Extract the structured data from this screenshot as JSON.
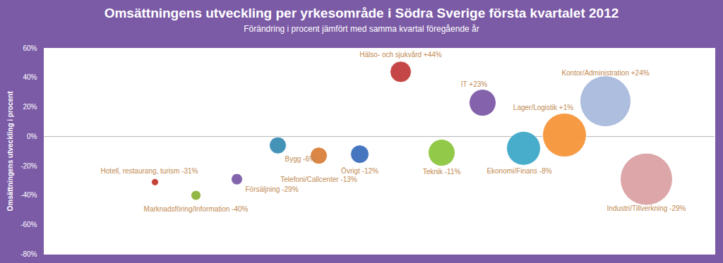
{
  "chart_data": {
    "type": "scatter",
    "title": "Omsättningens utveckling per yrkesområde i Södra Sverige första kvartalet 2012",
    "subtitle": "Förändring i procent jämfört med samma kvartal föregående år",
    "y_label": "Omsättningens utveckling i procent",
    "categories": [
      "Hotell, restaurang, turism -31%",
      "Marknadsföring/Information -40%",
      "Försäljning -29%",
      "Bygg -6%",
      "Telefoni/Callcenter -13%",
      "Övrigt -12%",
      "Hälso- och sjukvård +44%",
      "Teknik -11%",
      "IT +23%",
      "Ekonomi/Finans -8%",
      "Lager/Logistik +1%",
      "Kontor/Administration +24%",
      "Industri/Tillverkning -29%"
    ],
    "values": [
      -31,
      -40,
      -29,
      -6,
      -13,
      -12,
      44,
      -11,
      23,
      -8,
      1,
      24,
      -29
    ],
    "sizes": [
      25,
      49,
      64,
      144,
      144,
      169,
      225,
      361,
      361,
      576,
      961,
      1296,
      1369
    ],
    "colors": [
      "#c0392f",
      "#8cb33b",
      "#7b5ba8",
      "#3a8db3",
      "#d9803a",
      "#3d6fbd",
      "#c23c3c",
      "#8dc63f",
      "#7d5aa8",
      "#3ea9c8",
      "#f5963a",
      "#a9badc",
      "#dba1a3"
    ],
    "ylim": [
      -80,
      60
    ],
    "yticks": [
      {
        "value": -80,
        "label": "-80%"
      },
      {
        "value": -60,
        "label": "-60%"
      },
      {
        "value": -40,
        "label": "-40%"
      },
      {
        "value": -20,
        "label": "-20%"
      },
      {
        "value": 0,
        "label": "0%"
      },
      {
        "value": 20,
        "label": "20%"
      },
      {
        "value": 40,
        "label": "40%"
      },
      {
        "value": 60,
        "label": "60%"
      }
    ],
    "grid": false,
    "tick_labels": "y",
    "data_labels": false
  }
}
